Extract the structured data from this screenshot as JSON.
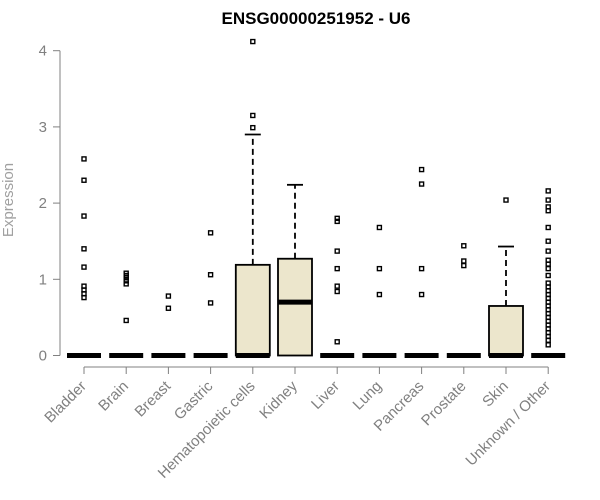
{
  "chart_data": {
    "type": "box",
    "title": "ENSG00000251952 - U6",
    "ylabel": "Expression",
    "xlabel": "",
    "ylim": [
      0,
      4.1
    ],
    "yticks": [
      0,
      1,
      2,
      3,
      4
    ],
    "box_fill_color": "#ece6cc",
    "categories": [
      "Bladder",
      "Brain",
      "Breast",
      "Gastric",
      "Hematopoietic cells",
      "Kidney",
      "Liver",
      "Lung",
      "Pancreas",
      "Prostate",
      "Skin",
      "Unknown / Other"
    ],
    "boxes": [
      {
        "category": "Bladder",
        "q1": 0,
        "median": 0,
        "q3": 0,
        "whisker_low": 0,
        "whisker_high": 0,
        "outliers": [
          0.76,
          0.81,
          0.86,
          0.91,
          1.16,
          1.4,
          1.83,
          2.3,
          2.58
        ]
      },
      {
        "category": "Brain",
        "q1": 0,
        "median": 0,
        "q3": 0,
        "whisker_low": 0,
        "whisker_high": 0,
        "outliers": [
          0.46,
          0.94,
          0.98,
          1.02,
          1.05,
          1.08
        ]
      },
      {
        "category": "Breast",
        "q1": 0,
        "median": 0,
        "q3": 0,
        "whisker_low": 0,
        "whisker_high": 0,
        "outliers": [
          0.62,
          0.78
        ]
      },
      {
        "category": "Gastric",
        "q1": 0,
        "median": 0,
        "q3": 0,
        "whisker_low": 0,
        "whisker_high": 0,
        "outliers": [
          0.69,
          1.06,
          1.61
        ]
      },
      {
        "category": "Hematopoietic cells",
        "q1": 0,
        "median": 0,
        "q3": 1.19,
        "whisker_low": 0,
        "whisker_high": 2.9,
        "outliers": [
          2.99,
          3.15,
          4.12
        ]
      },
      {
        "category": "Kidney",
        "q1": 0,
        "median": 0.7,
        "q3": 1.27,
        "whisker_low": 0,
        "whisker_high": 2.24,
        "outliers": []
      },
      {
        "category": "Liver",
        "q1": 0,
        "median": 0,
        "q3": 0,
        "whisker_low": 0,
        "whisker_high": 0,
        "outliers": [
          0.18,
          0.84,
          0.91,
          1.14,
          1.37,
          1.76,
          1.8
        ]
      },
      {
        "category": "Lung",
        "q1": 0,
        "median": 0,
        "q3": 0,
        "whisker_low": 0,
        "whisker_high": 0,
        "outliers": [
          0.8,
          1.14,
          1.68
        ]
      },
      {
        "category": "Pancreas",
        "q1": 0,
        "median": 0,
        "q3": 0,
        "whisker_low": 0,
        "whisker_high": 0,
        "outliers": [
          0.8,
          1.14,
          2.25,
          2.44
        ]
      },
      {
        "category": "Prostate",
        "q1": 0,
        "median": 0,
        "q3": 0,
        "whisker_low": 0,
        "whisker_high": 0,
        "outliers": [
          1.18,
          1.24,
          1.44
        ]
      },
      {
        "category": "Skin",
        "q1": 0,
        "median": 0,
        "q3": 0.65,
        "whisker_low": 0,
        "whisker_high": 1.43,
        "outliers": [
          2.04
        ]
      },
      {
        "category": "Unknown / Other",
        "q1": 0,
        "median": 0,
        "q3": 0,
        "whisker_low": 0,
        "whisker_high": 0,
        "outliers": [
          0.14,
          0.2,
          0.25,
          0.3,
          0.35,
          0.4,
          0.45,
          0.5,
          0.55,
          0.6,
          0.65,
          0.7,
          0.75,
          0.8,
          0.85,
          0.9,
          0.95,
          1.05,
          1.14,
          1.2,
          1.25,
          1.37,
          1.5,
          1.68,
          1.9,
          1.95,
          2.04,
          2.16
        ]
      }
    ]
  }
}
